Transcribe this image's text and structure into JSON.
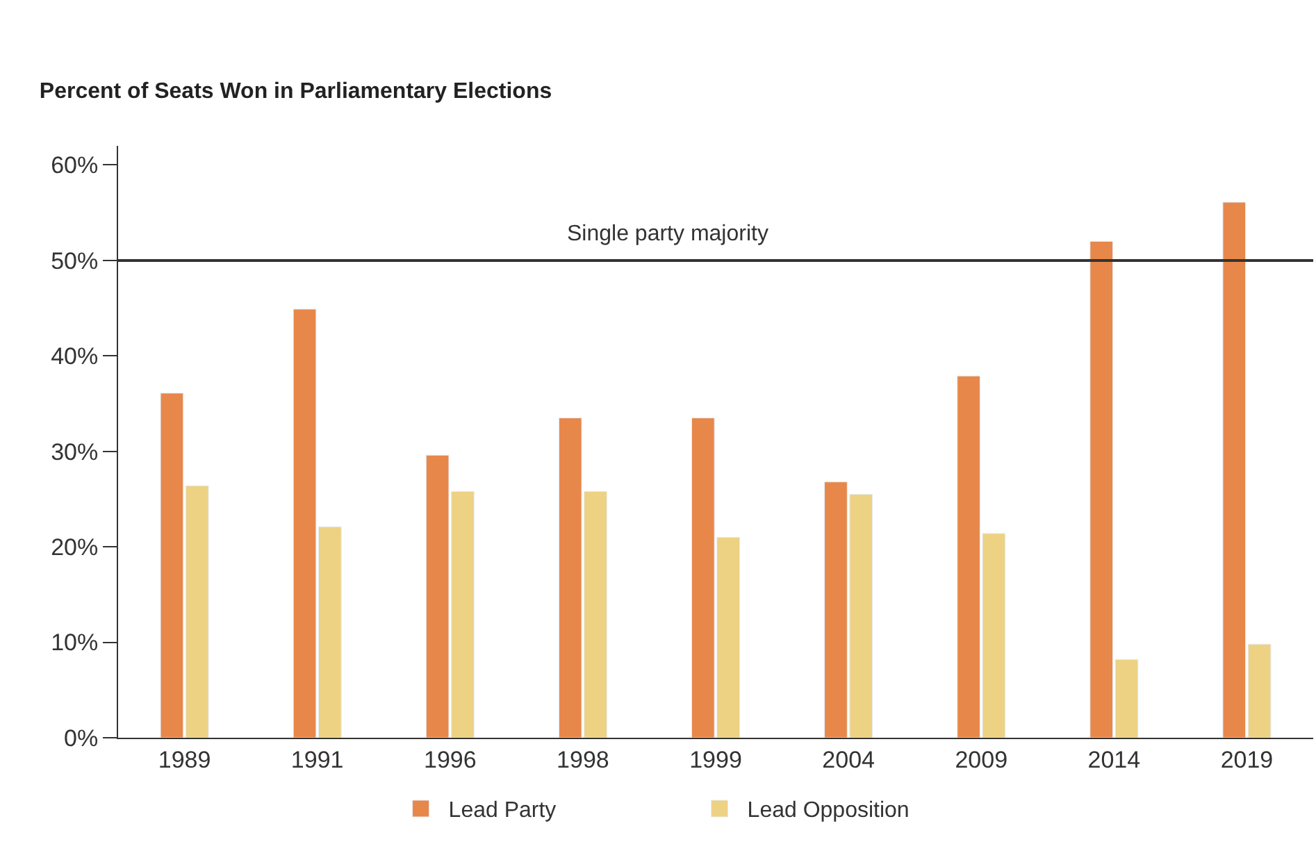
{
  "chart_data": {
    "type": "bar",
    "title": "Percent of Seats Won in Parliamentary Elections",
    "categories": [
      "1989",
      "1991",
      "1996",
      "1998",
      "1999",
      "2004",
      "2009",
      "2014",
      "2019"
    ],
    "series": [
      {
        "name": "Lead Party",
        "color": "#e8874a",
        "values": [
          36.1,
          44.9,
          29.6,
          33.5,
          33.5,
          26.8,
          37.9,
          52.0,
          56.1
        ]
      },
      {
        "name": "Lead Opposition",
        "color": "#edd283",
        "values": [
          26.4,
          22.1,
          25.8,
          25.8,
          21.0,
          25.5,
          21.4,
          8.2,
          9.8
        ]
      }
    ],
    "ylim": [
      0,
      62
    ],
    "yticks": [
      {
        "value": 0,
        "label": "0%"
      },
      {
        "value": 10,
        "label": "10%"
      },
      {
        "value": 20,
        "label": "20%"
      },
      {
        "value": 30,
        "label": "30%"
      },
      {
        "value": 40,
        "label": "40%"
      },
      {
        "value": 50,
        "label": "50%"
      },
      {
        "value": 60,
        "label": "60%"
      }
    ],
    "ref_lines": [
      {
        "axis": "y",
        "value": 50,
        "label": "Single party majority",
        "color": "#333333"
      }
    ],
    "legend": "bottom"
  }
}
